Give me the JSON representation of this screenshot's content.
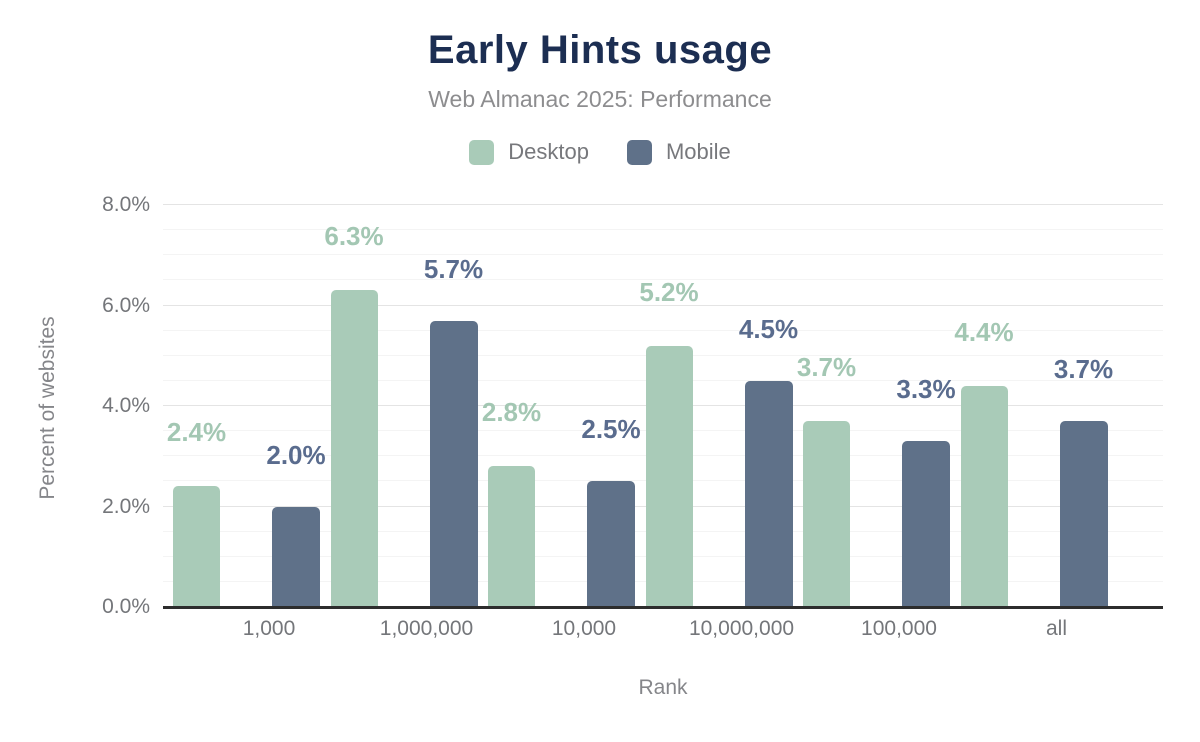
{
  "chart_data": {
    "type": "bar",
    "title": "Early Hints usage",
    "subtitle": "Web Almanac 2025: Performance",
    "xlabel": "Rank",
    "ylabel": "Percent of websites",
    "categories": [
      "1,000",
      "1,000,000",
      "10,000",
      "10,000,000",
      "100,000",
      "all"
    ],
    "series": [
      {
        "name": "Desktop",
        "color": "#a9cbb8",
        "label_color": "#a3c7b3",
        "values": [
          2.4,
          6.3,
          2.8,
          5.2,
          3.7,
          4.4
        ],
        "labels": [
          "2.4%",
          "6.3%",
          "2.8%",
          "5.2%",
          "3.7%",
          "4.4%"
        ]
      },
      {
        "name": "Mobile",
        "color": "#5f7189",
        "label_color": "#5a6c8e",
        "values": [
          2.0,
          5.7,
          2.5,
          4.5,
          3.3,
          3.7
        ],
        "labels": [
          "2.0%",
          "5.7%",
          "2.5%",
          "4.5%",
          "3.3%",
          "3.7%"
        ]
      }
    ],
    "ylim": [
      0,
      8
    ],
    "ytick_labels": [
      "0.0%",
      "2.0%",
      "4.0%",
      "6.0%",
      "8.0%"
    ],
    "grid": {
      "minor_step": 0.5,
      "major_step": 2.0,
      "minor_color": "#f4f4f4",
      "major_color": "#e4e4e4"
    },
    "legend_position": "top",
    "colors": {
      "title": "#1c2e52",
      "subtitle": "#8d8d8f",
      "legend_text": "#77787c",
      "tick_text": "#74767a",
      "axis_title_text": "#85868a",
      "axis_line": "#2d2d2d",
      "background": "#ffffff"
    }
  }
}
